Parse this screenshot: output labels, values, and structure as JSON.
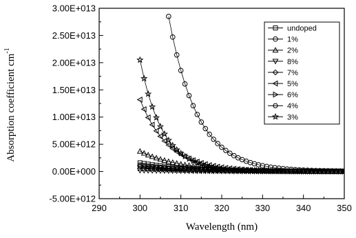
{
  "chart_data": {
    "type": "line",
    "xlabel": "Wavelength (nm)",
    "ylabel": "Absorption coefficient cm",
    "ylabel_superscript": "-1",
    "xlim": [
      290,
      350
    ],
    "ylim": [
      -5000000000000.0,
      30000000000000.0
    ],
    "x_ticks": [
      "290",
      "300",
      "310",
      "320",
      "330",
      "340",
      "350"
    ],
    "y_ticks": [
      "-5.00E+012",
      "0.00E+000",
      "5.00E+012",
      "1.00E+013",
      "1.50E+013",
      "2.00E+013",
      "2.50E+013",
      "3.00E+013"
    ],
    "grid": false,
    "legend_position": "top-right",
    "series": [
      {
        "name": "undoped",
        "marker": "square",
        "x_start": 300,
        "x_end": 350,
        "x_step": 1,
        "y_start": 1600000000000.0,
        "decay": 12
      },
      {
        "name": "1%",
        "marker": "circle",
        "x_start": 307,
        "x_end": 350,
        "x_step": 1,
        "y_start": 28500000000000.0,
        "decay": 7
      },
      {
        "name": "2%",
        "marker": "triangle-up",
        "x_start": 300,
        "x_end": 350,
        "x_step": 1,
        "y_start": 3700000000000.0,
        "decay": 10
      },
      {
        "name": "8%",
        "marker": "triangle-down",
        "x_start": 300,
        "x_end": 350,
        "x_step": 1,
        "y_start": 200000000000.0,
        "decay": 15
      },
      {
        "name": "7%",
        "marker": "diamond",
        "x_start": 300,
        "x_end": 350,
        "x_step": 1,
        "y_start": 1000000000000.0,
        "decay": 12
      },
      {
        "name": "5%",
        "marker": "triangle-left",
        "x_start": 300,
        "x_end": 350,
        "x_step": 1,
        "y_start": 13200000000000.0,
        "decay": 7
      },
      {
        "name": "6%",
        "marker": "triangle-right",
        "x_start": 300,
        "x_end": 350,
        "x_step": 1,
        "y_start": 600000000000.0,
        "decay": 12
      },
      {
        "name": "4%",
        "marker": "hexagon",
        "x_start": 300,
        "x_end": 350,
        "x_step": 1,
        "y_start": 1200000000000.0,
        "decay": 12
      },
      {
        "name": "3%",
        "marker": "star",
        "x_start": 300,
        "x_end": 350,
        "x_step": 1,
        "y_start": 20500000000000.0,
        "decay": 5.5
      }
    ]
  }
}
